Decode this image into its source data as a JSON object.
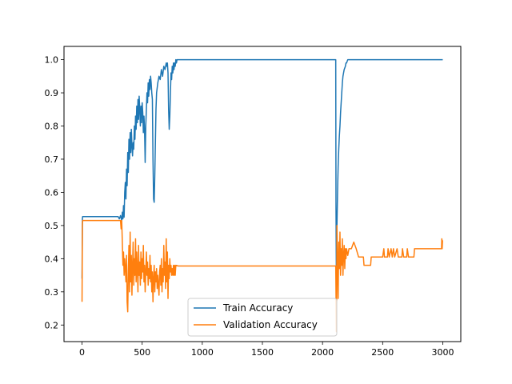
{
  "chart_data": {
    "type": "line",
    "title": "",
    "xlabel": "",
    "ylabel": "",
    "xlim": [
      -150,
      3150
    ],
    "ylim": [
      0.15,
      1.04
    ],
    "x_ticks": [
      0,
      500,
      1000,
      1500,
      2000,
      2500,
      3000
    ],
    "y_ticks": [
      0.2,
      0.3,
      0.4,
      0.5,
      0.6,
      0.7,
      0.8,
      0.9,
      1.0
    ],
    "x_tick_labels": [
      "0",
      "500",
      "1000",
      "1500",
      "2000",
      "2500",
      "3000"
    ],
    "y_tick_labels": [
      "0.2",
      "0.3",
      "0.4",
      "0.5",
      "0.6",
      "0.7",
      "0.8",
      "0.9",
      "1.0"
    ],
    "grid": false,
    "legend_position": "lower-center",
    "series": [
      {
        "name": "Train Accuracy",
        "color": "#1f77b4",
        "points": [
          [
            0,
            0.34
          ],
          [
            3,
            0.52
          ],
          [
            5,
            0.527
          ],
          [
            100,
            0.527
          ],
          [
            200,
            0.527
          ],
          [
            300,
            0.527
          ],
          [
            310,
            0.52
          ],
          [
            320,
            0.53
          ],
          [
            330,
            0.515
          ],
          [
            335,
            0.54
          ],
          [
            340,
            0.52
          ],
          [
            345,
            0.56
          ],
          [
            350,
            0.525
          ],
          [
            355,
            0.6
          ],
          [
            360,
            0.63
          ],
          [
            365,
            0.58
          ],
          [
            370,
            0.67
          ],
          [
            375,
            0.62
          ],
          [
            380,
            0.72
          ],
          [
            385,
            0.66
          ],
          [
            390,
            0.76
          ],
          [
            395,
            0.7
          ],
          [
            400,
            0.78
          ],
          [
            405,
            0.72
          ],
          [
            410,
            0.79
          ],
          [
            415,
            0.74
          ],
          [
            420,
            0.71
          ],
          [
            425,
            0.75
          ],
          [
            430,
            0.73
          ],
          [
            435,
            0.8
          ],
          [
            440,
            0.76
          ],
          [
            445,
            0.83
          ],
          [
            450,
            0.79
          ],
          [
            455,
            0.86
          ],
          [
            460,
            0.81
          ],
          [
            465,
            0.88
          ],
          [
            470,
            0.82
          ],
          [
            475,
            0.89
          ],
          [
            480,
            0.85
          ],
          [
            485,
            0.8
          ],
          [
            490,
            0.86
          ],
          [
            495,
            0.81
          ],
          [
            500,
            0.87
          ],
          [
            505,
            0.84
          ],
          [
            510,
            0.78
          ],
          [
            515,
            0.83
          ],
          [
            520,
            0.79
          ],
          [
            525,
            0.69
          ],
          [
            530,
            0.8
          ],
          [
            535,
            0.85
          ],
          [
            540,
            0.9
          ],
          [
            545,
            0.87
          ],
          [
            550,
            0.93
          ],
          [
            555,
            0.89
          ],
          [
            560,
            0.94
          ],
          [
            565,
            0.91
          ],
          [
            570,
            0.95
          ],
          [
            575,
            0.93
          ],
          [
            580,
            0.9
          ],
          [
            585,
            0.88
          ],
          [
            590,
            0.7
          ],
          [
            595,
            0.58
          ],
          [
            600,
            0.57
          ],
          [
            605,
            0.65
          ],
          [
            610,
            0.75
          ],
          [
            615,
            0.85
          ],
          [
            620,
            0.9
          ],
          [
            630,
            0.93
          ],
          [
            640,
            0.95
          ],
          [
            650,
            0.94
          ],
          [
            660,
            0.97
          ],
          [
            670,
            0.95
          ],
          [
            680,
            0.98
          ],
          [
            690,
            0.97
          ],
          [
            700,
            0.99
          ],
          [
            705,
            0.98
          ],
          [
            710,
            0.99
          ],
          [
            715,
            0.96
          ],
          [
            720,
            0.85
          ],
          [
            725,
            0.79
          ],
          [
            730,
            0.83
          ],
          [
            735,
            0.9
          ],
          [
            740,
            0.96
          ],
          [
            745,
            0.94
          ],
          [
            750,
            0.98
          ],
          [
            755,
            0.96
          ],
          [
            760,
            0.99
          ],
          [
            765,
            0.97
          ],
          [
            770,
            0.99
          ],
          [
            775,
            0.98
          ],
          [
            780,
            1.0
          ],
          [
            785,
            0.99
          ],
          [
            790,
            1.0
          ],
          [
            800,
            1.0
          ],
          [
            1000,
            1.0
          ],
          [
            1500,
            1.0
          ],
          [
            2000,
            1.0
          ],
          [
            2110,
            1.0
          ],
          [
            2112,
            0.55
          ],
          [
            2115,
            0.35
          ],
          [
            2120,
            0.5
          ],
          [
            2125,
            0.6
          ],
          [
            2130,
            0.68
          ],
          [
            2135,
            0.73
          ],
          [
            2140,
            0.77
          ],
          [
            2145,
            0.8
          ],
          [
            2150,
            0.84
          ],
          [
            2155,
            0.87
          ],
          [
            2160,
            0.9
          ],
          [
            2165,
            0.93
          ],
          [
            2170,
            0.95
          ],
          [
            2175,
            0.96
          ],
          [
            2180,
            0.97
          ],
          [
            2185,
            0.975
          ],
          [
            2190,
            0.98
          ],
          [
            2195,
            0.99
          ],
          [
            2200,
            0.99
          ],
          [
            2205,
            0.995
          ],
          [
            2210,
            1.0
          ],
          [
            2300,
            1.0
          ],
          [
            2500,
            1.0
          ],
          [
            2750,
            1.0
          ],
          [
            3000,
            1.0
          ]
        ]
      },
      {
        "name": "Validation Accuracy",
        "color": "#ff7f0e",
        "points": [
          [
            0,
            0.27
          ],
          [
            3,
            0.5
          ],
          [
            5,
            0.515
          ],
          [
            100,
            0.515
          ],
          [
            200,
            0.515
          ],
          [
            300,
            0.515
          ],
          [
            320,
            0.515
          ],
          [
            325,
            0.49
          ],
          [
            330,
            0.515
          ],
          [
            335,
            0.45
          ],
          [
            340,
            0.38
          ],
          [
            345,
            0.42
          ],
          [
            350,
            0.35
          ],
          [
            355,
            0.4
          ],
          [
            360,
            0.37
          ],
          [
            365,
            0.33
          ],
          [
            370,
            0.41
          ],
          [
            375,
            0.27
          ],
          [
            380,
            0.24
          ],
          [
            385,
            0.36
          ],
          [
            390,
            0.44
          ],
          [
            395,
            0.3
          ],
          [
            400,
            0.48
          ],
          [
            405,
            0.33
          ],
          [
            410,
            0.41
          ],
          [
            415,
            0.29
          ],
          [
            420,
            0.38
          ],
          [
            425,
            0.45
          ],
          [
            430,
            0.32
          ],
          [
            435,
            0.4
          ],
          [
            440,
            0.35
          ],
          [
            445,
            0.46
          ],
          [
            450,
            0.33
          ],
          [
            455,
            0.42
          ],
          [
            460,
            0.37
          ],
          [
            465,
            0.3
          ],
          [
            470,
            0.44
          ],
          [
            475,
            0.35
          ],
          [
            480,
            0.39
          ],
          [
            485,
            0.32
          ],
          [
            490,
            0.42
          ],
          [
            495,
            0.34
          ],
          [
            500,
            0.4
          ],
          [
            505,
            0.36
          ],
          [
            510,
            0.44
          ],
          [
            515,
            0.33
          ],
          [
            520,
            0.38
          ],
          [
            525,
            0.3
          ],
          [
            530,
            0.36
          ],
          [
            535,
            0.42
          ],
          [
            540,
            0.35
          ],
          [
            545,
            0.39
          ],
          [
            550,
            0.32
          ],
          [
            555,
            0.37
          ],
          [
            560,
            0.34
          ],
          [
            565,
            0.41
          ],
          [
            570,
            0.33
          ],
          [
            575,
            0.38
          ],
          [
            580,
            0.3
          ],
          [
            585,
            0.36
          ],
          [
            590,
            0.27
          ],
          [
            595,
            0.34
          ],
          [
            600,
            0.38
          ],
          [
            605,
            0.3
          ],
          [
            610,
            0.36
          ],
          [
            615,
            0.33
          ],
          [
            620,
            0.37
          ],
          [
            625,
            0.31
          ],
          [
            630,
            0.35
          ],
          [
            640,
            0.29
          ],
          [
            645,
            0.36
          ],
          [
            650,
            0.38
          ],
          [
            655,
            0.32
          ],
          [
            660,
            0.4
          ],
          [
            665,
            0.3
          ],
          [
            670,
            0.37
          ],
          [
            675,
            0.33
          ],
          [
            680,
            0.44
          ],
          [
            685,
            0.35
          ],
          [
            690,
            0.39
          ],
          [
            695,
            0.31
          ],
          [
            700,
            0.46
          ],
          [
            705,
            0.33
          ],
          [
            710,
            0.42
          ],
          [
            715,
            0.28
          ],
          [
            720,
            0.38
          ],
          [
            725,
            0.34
          ],
          [
            730,
            0.4
          ],
          [
            735,
            0.36
          ],
          [
            740,
            0.38
          ],
          [
            745,
            0.35
          ],
          [
            750,
            0.37
          ],
          [
            755,
            0.35
          ],
          [
            760,
            0.38
          ],
          [
            765,
            0.35
          ],
          [
            770,
            0.38
          ],
          [
            775,
            0.35
          ],
          [
            780,
            0.38
          ],
          [
            800,
            0.378
          ],
          [
            1000,
            0.378
          ],
          [
            1500,
            0.378
          ],
          [
            2000,
            0.378
          ],
          [
            2110,
            0.378
          ],
          [
            2115,
            0.18
          ],
          [
            2118,
            0.3
          ],
          [
            2120,
            0.5
          ],
          [
            2125,
            0.4
          ],
          [
            2130,
            0.28
          ],
          [
            2135,
            0.45
          ],
          [
            2140,
            0.37
          ],
          [
            2145,
            0.48
          ],
          [
            2150,
            0.35
          ],
          [
            2155,
            0.43
          ],
          [
            2160,
            0.38
          ],
          [
            2165,
            0.46
          ],
          [
            2170,
            0.35
          ],
          [
            2175,
            0.41
          ],
          [
            2180,
            0.44
          ],
          [
            2185,
            0.37
          ],
          [
            2190,
            0.43
          ],
          [
            2195,
            0.4
          ],
          [
            2200,
            0.43
          ],
          [
            2210,
            0.41
          ],
          [
            2220,
            0.43
          ],
          [
            2240,
            0.43
          ],
          [
            2260,
            0.45
          ],
          [
            2280,
            0.43
          ],
          [
            2300,
            0.405
          ],
          [
            2340,
            0.405
          ],
          [
            2345,
            0.38
          ],
          [
            2400,
            0.38
          ],
          [
            2405,
            0.405
          ],
          [
            2500,
            0.405
          ],
          [
            2510,
            0.43
          ],
          [
            2515,
            0.405
          ],
          [
            2540,
            0.405
          ],
          [
            2545,
            0.43
          ],
          [
            2555,
            0.405
          ],
          [
            2570,
            0.43
          ],
          [
            2580,
            0.405
          ],
          [
            2590,
            0.43
          ],
          [
            2600,
            0.405
          ],
          [
            2620,
            0.43
          ],
          [
            2630,
            0.405
          ],
          [
            2660,
            0.405
          ],
          [
            2665,
            0.43
          ],
          [
            2675,
            0.405
          ],
          [
            2700,
            0.405
          ],
          [
            2705,
            0.43
          ],
          [
            2715,
            0.405
          ],
          [
            2760,
            0.405
          ],
          [
            2765,
            0.43
          ],
          [
            2990,
            0.43
          ],
          [
            2992,
            0.46
          ],
          [
            2995,
            0.43
          ],
          [
            2998,
            0.455
          ],
          [
            3000,
            0.455
          ]
        ]
      }
    ]
  }
}
